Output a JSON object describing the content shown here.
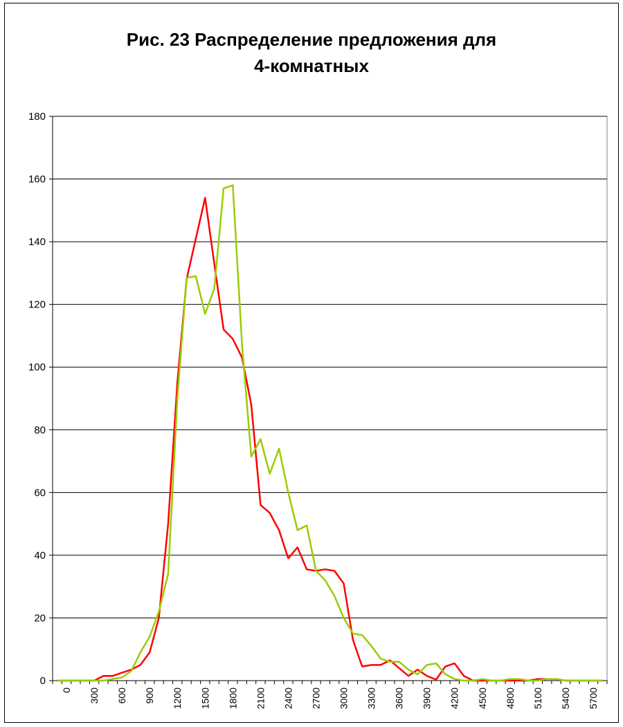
{
  "chart_data": {
    "type": "line",
    "title_line1": "Рис. 23 Распределение предложения для",
    "title_line2": "4-комнатных",
    "xlabel": "",
    "ylabel": "",
    "ylim": [
      0,
      180
    ],
    "y_ticks": [
      "0",
      "20",
      "40",
      "60",
      "80",
      "100",
      "120",
      "140",
      "160",
      "180"
    ],
    "x_tick_labels": [
      "0",
      "300",
      "600",
      "900",
      "1200",
      "1500",
      "1800",
      "2100",
      "2400",
      "2700",
      "3000",
      "3300",
      "3600",
      "3900",
      "4200",
      "4500",
      "4800",
      "5100",
      "5400",
      "5700"
    ],
    "x": [
      0,
      100,
      200,
      300,
      400,
      500,
      600,
      700,
      800,
      900,
      1000,
      1100,
      1200,
      1300,
      1400,
      1500,
      1600,
      1700,
      1800,
      1900,
      2000,
      2100,
      2200,
      2300,
      2400,
      2500,
      2600,
      2700,
      2800,
      2900,
      3000,
      3100,
      3200,
      3300,
      3400,
      3500,
      3600,
      3700,
      3800,
      3900,
      4000,
      4100,
      4200,
      4300,
      4400,
      4500,
      4600,
      4700,
      4800,
      4900,
      5000,
      5100,
      5200,
      5300,
      5400,
      5500,
      5600,
      5700,
      5800,
      5900
    ],
    "grid": true,
    "legend": "none",
    "series": [
      {
        "color": "#ff0000",
        "values": [
          0,
          0,
          0,
          0,
          0,
          1.5,
          1.5,
          2.5,
          3.5,
          5,
          9,
          20,
          50,
          95,
          128,
          141,
          154,
          133,
          112,
          109,
          103,
          88,
          56,
          53.5,
          48,
          39,
          42.5,
          35.5,
          35,
          35.5,
          35,
          31,
          13,
          4.5,
          5,
          5,
          6.5,
          4,
          1.5,
          3.5,
          1.5,
          0.3,
          4.5,
          5.5,
          1.5,
          0,
          0,
          0,
          0,
          0,
          0,
          0,
          0.5,
          0.5,
          0.5,
          0,
          0,
          0,
          0,
          0
        ]
      },
      {
        "color": "#99cc00",
        "values": [
          0,
          0,
          0,
          0,
          0,
          0,
          0.5,
          1,
          3,
          9,
          14,
          22,
          34,
          90,
          128.5,
          129,
          117,
          125,
          157,
          158,
          107,
          71.5,
          77,
          66,
          74,
          60,
          48,
          49.5,
          35,
          32,
          27,
          20,
          15,
          14.5,
          11,
          7,
          6,
          6,
          3.5,
          2,
          5,
          5.5,
          2,
          0.5,
          0,
          0,
          0.5,
          0,
          0,
          0.5,
          0.5,
          0,
          0,
          0.5,
          0.5,
          0,
          0,
          0,
          0,
          0
        ]
      }
    ]
  }
}
